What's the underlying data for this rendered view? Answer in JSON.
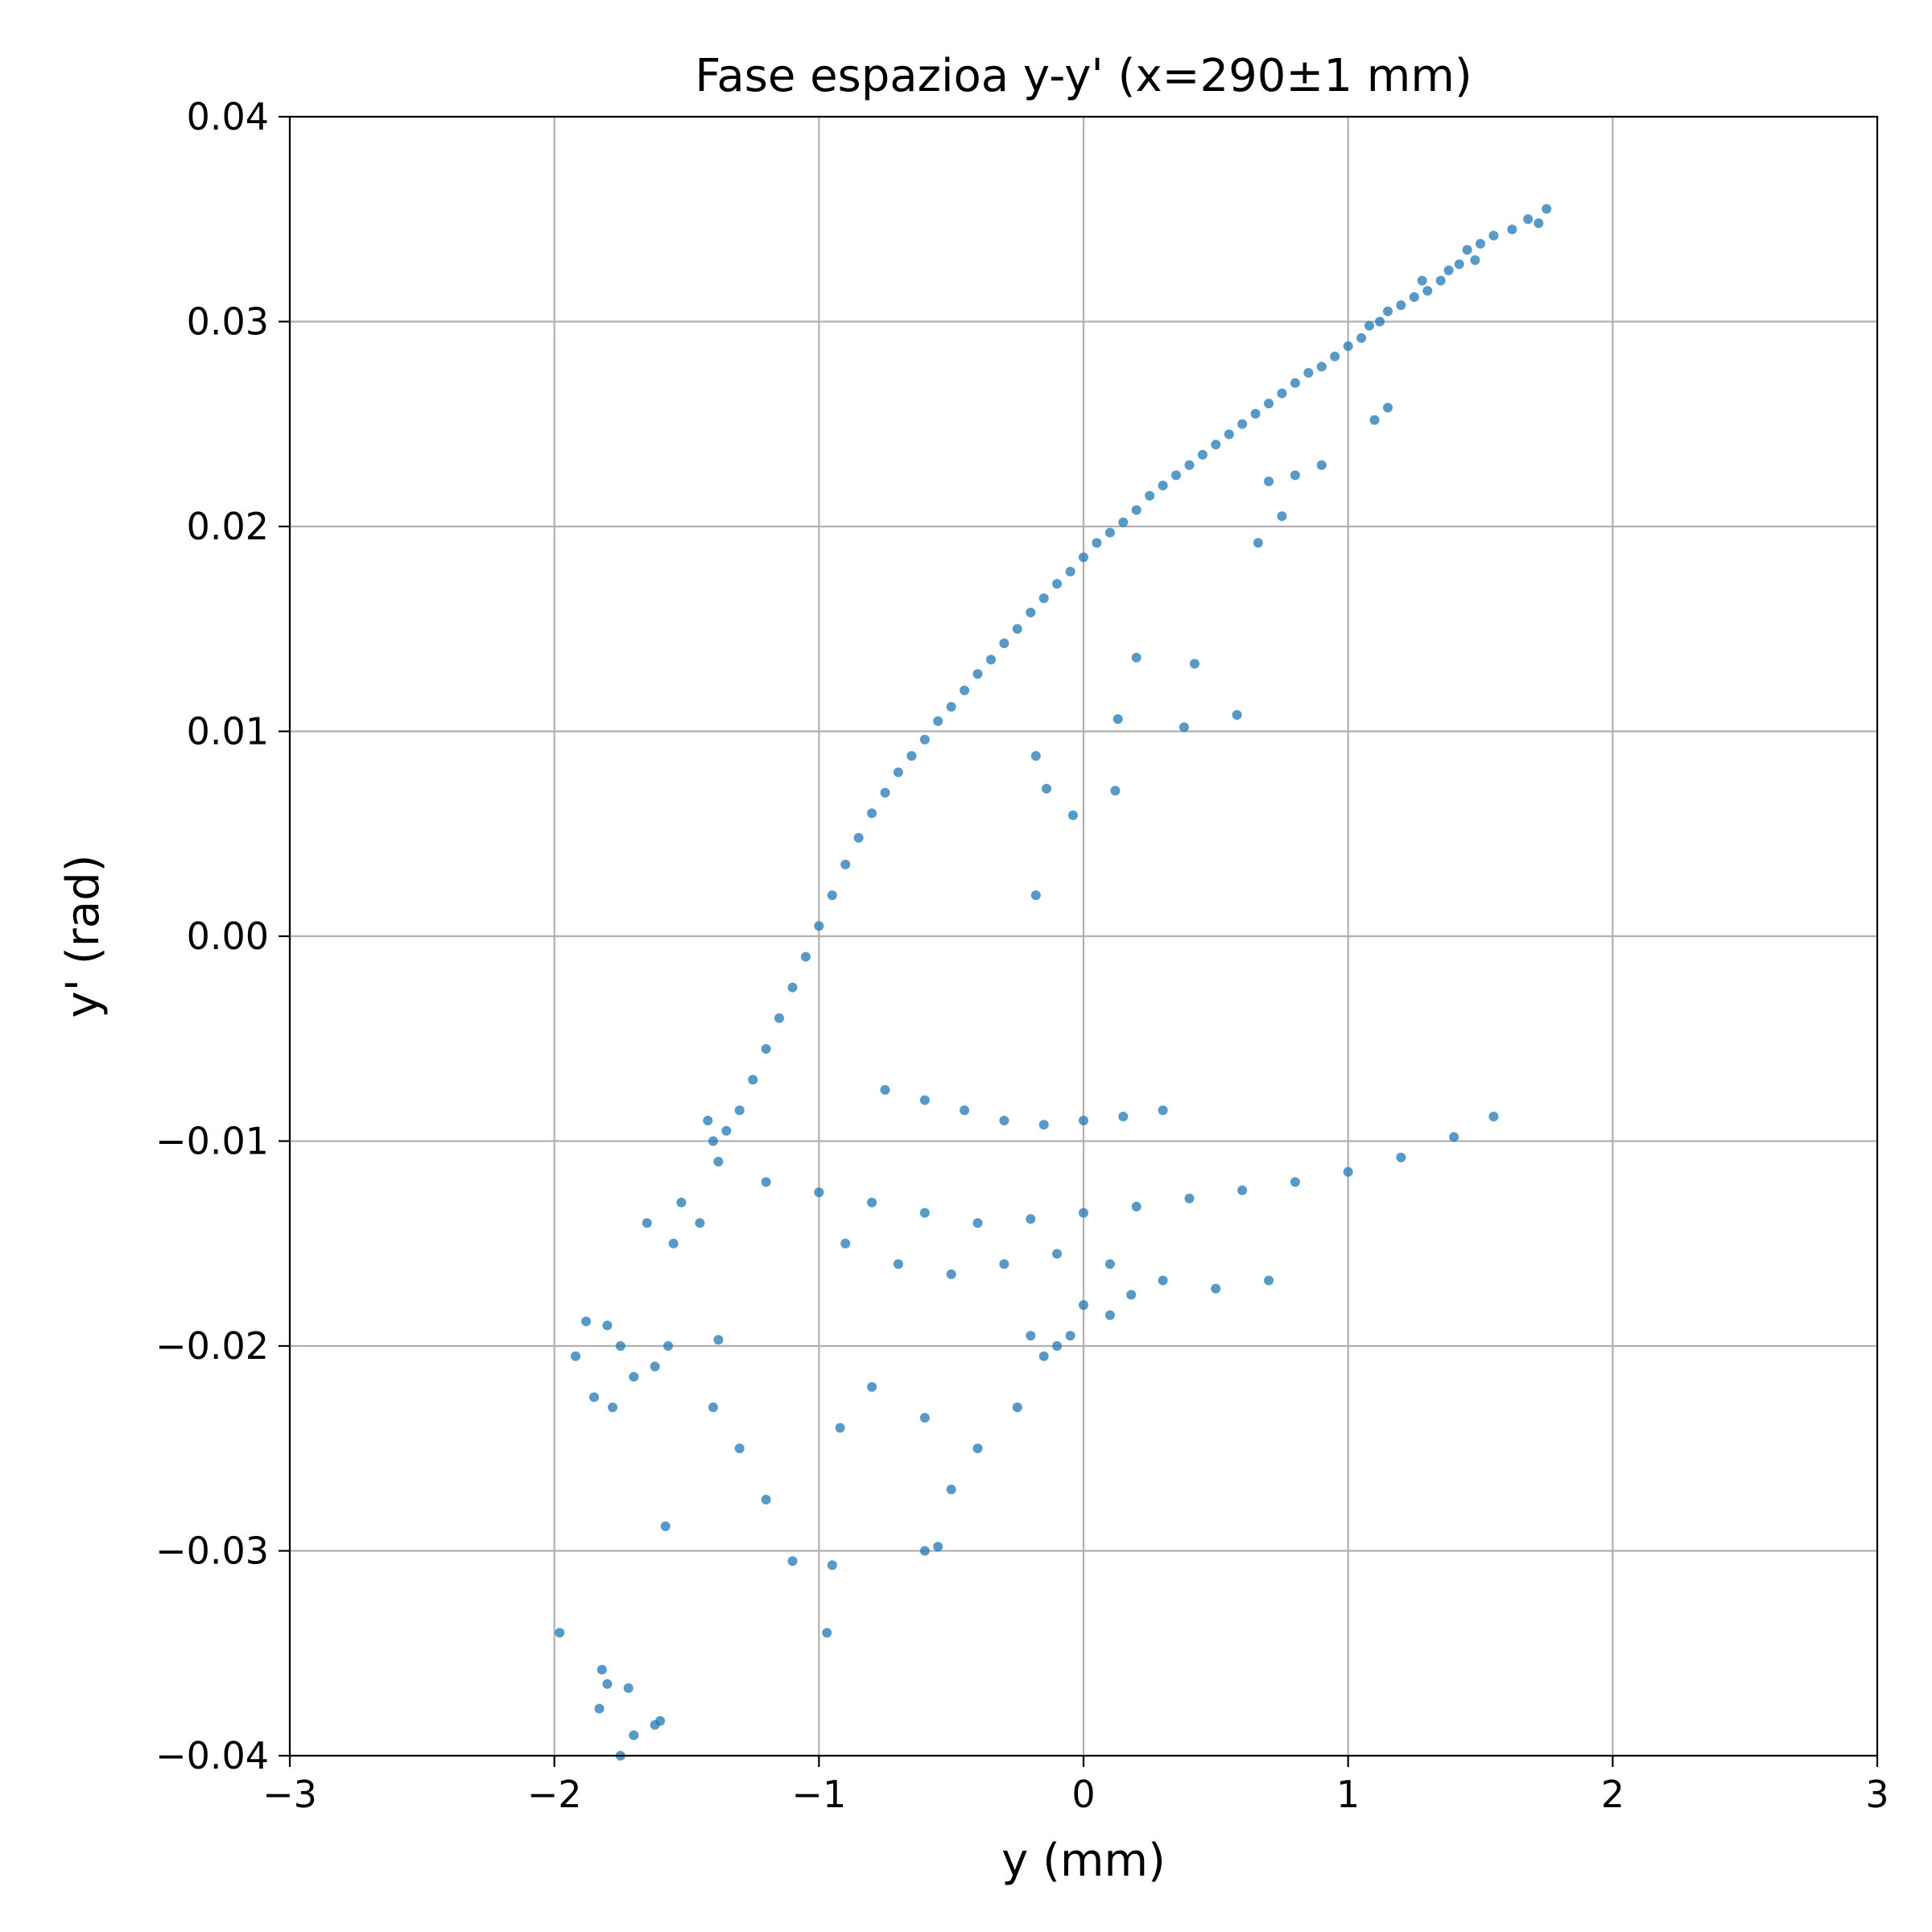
{
  "chart_data": {
    "type": "scatter",
    "title": "Fase espazioa y-y' (x=290±1 mm)",
    "xlabel": "y (mm)",
    "ylabel": "y' (rad)",
    "xlim": [
      -3,
      3
    ],
    "ylim": [
      -0.04,
      0.04
    ],
    "x_ticks": [
      -3,
      -2,
      -1,
      0,
      1,
      2,
      3
    ],
    "x_tick_labels": [
      "−3",
      "−2",
      "−1",
      "0",
      "1",
      "2",
      "3"
    ],
    "y_ticks": [
      -0.04,
      -0.03,
      -0.02,
      -0.01,
      0.0,
      0.01,
      0.02,
      0.03,
      0.04
    ],
    "y_tick_labels": [
      "−0.04",
      "−0.03",
      "−0.02",
      "−0.01",
      "0.00",
      "0.01",
      "0.02",
      "0.03",
      "0.04"
    ],
    "grid": true,
    "marker_color": "#1f77b4",
    "marker_alpha": 0.75,
    "series": [
      {
        "points": [
          [
            1.75,
            0.0355
          ],
          [
            1.72,
            0.0348
          ],
          [
            1.68,
            0.035
          ],
          [
            1.62,
            0.0345
          ],
          [
            1.55,
            0.0342
          ],
          [
            1.5,
            0.0338
          ],
          [
            1.48,
            0.033
          ],
          [
            1.45,
            0.0335
          ],
          [
            1.42,
            0.0328
          ],
          [
            1.38,
            0.0325
          ],
          [
            1.35,
            0.032
          ],
          [
            1.3,
            0.0315
          ],
          [
            1.28,
            0.032
          ],
          [
            1.25,
            0.0312
          ],
          [
            1.2,
            0.0308
          ],
          [
            1.15,
            0.0305
          ],
          [
            1.12,
            0.03
          ],
          [
            1.08,
            0.0298
          ],
          [
            1.05,
            0.0292
          ],
          [
            1.0,
            0.0288
          ],
          [
            0.95,
            0.0283
          ],
          [
            0.9,
            0.0278
          ],
          [
            0.85,
            0.0275
          ],
          [
            0.8,
            0.027
          ],
          [
            0.75,
            0.0265
          ],
          [
            0.7,
            0.026
          ],
          [
            0.65,
            0.0255
          ],
          [
            0.6,
            0.025
          ],
          [
            0.55,
            0.0245
          ],
          [
            0.5,
            0.024
          ],
          [
            0.45,
            0.0235
          ],
          [
            0.4,
            0.023
          ],
          [
            0.35,
            0.0225
          ],
          [
            0.3,
            0.022
          ],
          [
            0.25,
            0.0215
          ],
          [
            0.2,
            0.0208
          ],
          [
            0.15,
            0.0202
          ],
          [
            0.1,
            0.0197
          ],
          [
            0.05,
            0.0192
          ],
          [
            0.0,
            0.0185
          ],
          [
            -0.05,
            0.0178
          ],
          [
            -0.1,
            0.0172
          ],
          [
            -0.15,
            0.0165
          ],
          [
            -0.2,
            0.0158
          ],
          [
            -0.25,
            0.015
          ],
          [
            -0.3,
            0.0143
          ],
          [
            -0.35,
            0.0135
          ],
          [
            -0.4,
            0.0128
          ],
          [
            -0.45,
            0.012
          ],
          [
            -0.5,
            0.0112
          ],
          [
            -0.55,
            0.0105
          ],
          [
            -0.6,
            0.0096
          ],
          [
            -0.65,
            0.0088
          ],
          [
            -0.7,
            0.008
          ],
          [
            -0.75,
            0.007
          ],
          [
            -0.8,
            0.006
          ],
          [
            -0.85,
            0.0048
          ],
          [
            -0.9,
            0.0035
          ],
          [
            -0.95,
            0.002
          ],
          [
            -1.0,
            0.0005
          ],
          [
            -1.05,
            -0.001
          ],
          [
            -1.1,
            -0.0025
          ],
          [
            -1.15,
            -0.004
          ],
          [
            -1.2,
            -0.0055
          ],
          [
            -1.25,
            -0.007
          ],
          [
            -1.3,
            -0.0085
          ],
          [
            -1.35,
            -0.0095
          ],
          [
            -1.4,
            -0.01
          ],
          [
            -1.42,
            -0.009
          ],
          [
            -1.38,
            -0.011
          ],
          [
            -1.2,
            -0.012
          ],
          [
            -1.0,
            -0.0125
          ],
          [
            -0.8,
            -0.013
          ],
          [
            -0.6,
            -0.0135
          ],
          [
            -0.4,
            -0.014
          ],
          [
            -0.2,
            -0.0138
          ],
          [
            0.0,
            -0.0135
          ],
          [
            0.2,
            -0.0132
          ],
          [
            0.4,
            -0.0128
          ],
          [
            0.6,
            -0.0124
          ],
          [
            0.8,
            -0.012
          ],
          [
            1.0,
            -0.0115
          ],
          [
            1.2,
            -0.0108
          ],
          [
            1.4,
            -0.0098
          ],
          [
            1.55,
            -0.0088
          ],
          [
            -0.75,
            -0.0075
          ],
          [
            -0.6,
            -0.008
          ],
          [
            -0.45,
            -0.0085
          ],
          [
            -0.3,
            -0.009
          ],
          [
            -0.15,
            -0.0092
          ],
          [
            0.0,
            -0.009
          ],
          [
            0.15,
            -0.0088
          ],
          [
            0.3,
            -0.0085
          ],
          [
            -0.9,
            -0.015
          ],
          [
            -0.7,
            -0.016
          ],
          [
            -0.5,
            -0.0165
          ],
          [
            -0.3,
            -0.016
          ],
          [
            -0.1,
            -0.0155
          ],
          [
            0.1,
            -0.016
          ],
          [
            0.3,
            -0.0168
          ],
          [
            0.5,
            -0.0172
          ],
          [
            0.7,
            -0.0168
          ],
          [
            1.1,
            0.0252
          ],
          [
            1.15,
            0.0258
          ],
          [
            0.9,
            0.023
          ],
          [
            0.8,
            0.0225
          ],
          [
            0.7,
            0.0222
          ],
          [
            0.66,
            0.0192
          ],
          [
            0.75,
            0.0205
          ],
          [
            0.58,
            0.0108
          ],
          [
            0.42,
            0.0133
          ],
          [
            0.38,
            0.0102
          ],
          [
            0.2,
            0.0136
          ],
          [
            0.13,
            0.0106
          ],
          [
            0.12,
            0.0071
          ],
          [
            -0.04,
            0.0059
          ],
          [
            -0.14,
            0.0072
          ],
          [
            -0.18,
            0.0088
          ],
          [
            -0.18,
            0.002
          ],
          [
            -0.92,
            -0.024
          ],
          [
            -0.8,
            -0.022
          ],
          [
            -0.6,
            -0.0235
          ],
          [
            -0.4,
            -0.025
          ],
          [
            -0.25,
            -0.023
          ],
          [
            -0.5,
            -0.027
          ],
          [
            -0.6,
            -0.03
          ],
          [
            -0.55,
            -0.0298
          ],
          [
            -0.95,
            -0.0307
          ],
          [
            -1.1,
            -0.0305
          ],
          [
            -0.97,
            -0.034
          ],
          [
            -1.2,
            -0.0275
          ],
          [
            -1.3,
            -0.025
          ],
          [
            -1.4,
            -0.023
          ],
          [
            -1.58,
            -0.0288
          ],
          [
            -1.62,
            -0.021
          ],
          [
            -1.8,
            -0.019
          ],
          [
            -1.88,
            -0.0188
          ],
          [
            -1.92,
            -0.0205
          ],
          [
            -1.75,
            -0.02
          ],
          [
            -1.7,
            -0.0215
          ],
          [
            -1.85,
            -0.0225
          ],
          [
            -1.78,
            -0.023
          ],
          [
            -1.57,
            -0.02
          ],
          [
            -1.38,
            -0.0197
          ],
          [
            -1.98,
            -0.034
          ],
          [
            -1.82,
            -0.0358
          ],
          [
            -1.8,
            -0.0365
          ],
          [
            -1.72,
            -0.0367
          ],
          [
            -1.83,
            -0.0377
          ],
          [
            -1.7,
            -0.039
          ],
          [
            -1.62,
            -0.0385
          ],
          [
            -1.6,
            -0.0383
          ],
          [
            -1.75,
            -0.04
          ],
          [
            -1.55,
            -0.015
          ],
          [
            -1.65,
            -0.014
          ],
          [
            -1.52,
            -0.013
          ],
          [
            -1.45,
            -0.014
          ],
          [
            -0.2,
            -0.0195
          ],
          [
            -0.1,
            -0.02
          ],
          [
            0.0,
            -0.018
          ],
          [
            0.1,
            -0.0185
          ],
          [
            0.18,
            -0.0175
          ],
          [
            -0.05,
            -0.0195
          ],
          [
            -0.15,
            -0.0205
          ]
        ]
      }
    ]
  }
}
